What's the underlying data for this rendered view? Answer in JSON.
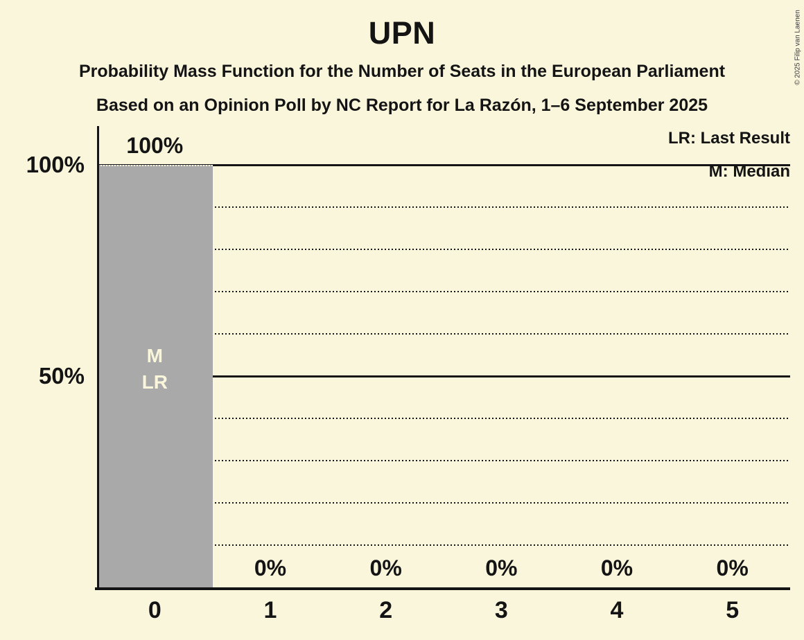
{
  "title": "UPN",
  "subtitles": [
    "Probability Mass Function for the Number of Seats in the European Parliament",
    "Based on an Opinion Poll by NC Report for La Razón, 1–6 September 2025"
  ],
  "copyright": "© 2025 Filip van Laenen",
  "legend": {
    "lr_label": "LR: Last Result",
    "m_label": "M: Median"
  },
  "colors": {
    "background": "#FAF6DC",
    "bar": "#A9A9A9",
    "text": "#141414",
    "bar_annotation": "#FAF6DC",
    "copyright": "#3a3a3a"
  },
  "y_axis": {
    "ticks": [
      {
        "percent": 100,
        "label": "100%"
      },
      {
        "percent": 50,
        "label": "50%"
      }
    ]
  },
  "chart_data": {
    "type": "bar",
    "title": "UPN",
    "categories": [
      "0",
      "1",
      "2",
      "3",
      "4",
      "5"
    ],
    "values": [
      100,
      0,
      0,
      0,
      0,
      0
    ],
    "value_labels": [
      "100%",
      "0%",
      "0%",
      "0%",
      "0%",
      "0%"
    ],
    "ylim": [
      0,
      100
    ],
    "grid": {
      "dotted_percents": [
        10,
        20,
        30,
        40,
        60,
        70,
        80,
        90
      ],
      "solid_percents": [
        50,
        100
      ]
    },
    "legend_entries": [
      "LR: Last Result",
      "M: Median"
    ],
    "legend_position": "top-right",
    "annotations": [
      {
        "category": "0",
        "lines": [
          "M",
          "LR"
        ]
      }
    ]
  }
}
